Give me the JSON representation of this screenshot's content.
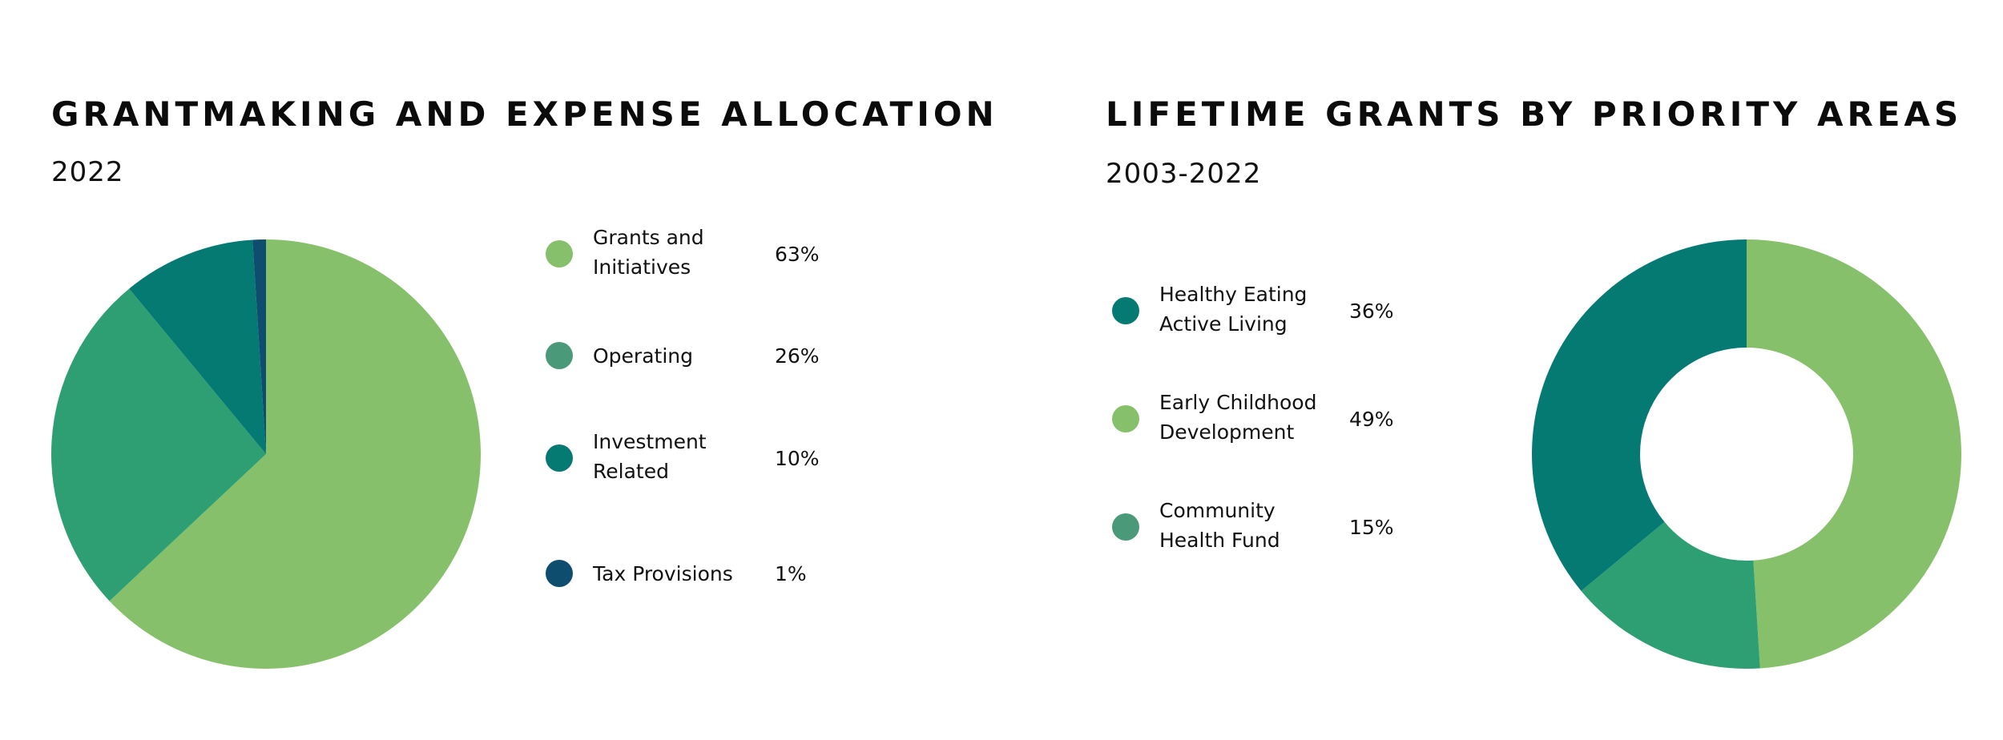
{
  "chart_data": [
    {
      "type": "pie",
      "title": "GRANTMAKING AND EXPENSE ALLOCATION",
      "subtitle": "2022",
      "legend_position": "right",
      "slices": [
        {
          "label_lines": [
            "Grants and",
            "Initiatives"
          ],
          "value": 63,
          "value_label": "63%",
          "color": "#86c06a"
        },
        {
          "label_lines": [
            "Operating"
          ],
          "value": 26,
          "value_label": "26%",
          "color": "#2e9e73",
          "legend_color": "#4a9a7a"
        },
        {
          "label_lines": [
            "Investment",
            "Related"
          ],
          "value": 10,
          "value_label": "10%",
          "color": "#057a73"
        },
        {
          "label_lines": [
            "Tax Provisions"
          ],
          "value": 1,
          "value_label": "1%",
          "color": "#0e4d6e"
        }
      ]
    },
    {
      "type": "pie",
      "style": "donut",
      "title": "LIFETIME GRANTS BY PRIORITY AREAS",
      "subtitle": "2003-2022",
      "legend_position": "left",
      "slices": [
        {
          "label_lines": [
            "Early Childhood",
            "Development"
          ],
          "value": 49,
          "value_label": "49%",
          "color": "#86c06a"
        },
        {
          "label_lines": [
            "Community",
            "Health Fund"
          ],
          "value": 15,
          "value_label": "15%",
          "color": "#2e9e73",
          "legend_color": "#4a9a7a"
        },
        {
          "label_lines": [
            "Healthy Eating",
            "Active Living"
          ],
          "value": 36,
          "value_label": "36%",
          "color": "#057a73"
        }
      ],
      "legend_order": [
        2,
        0,
        1
      ]
    }
  ]
}
